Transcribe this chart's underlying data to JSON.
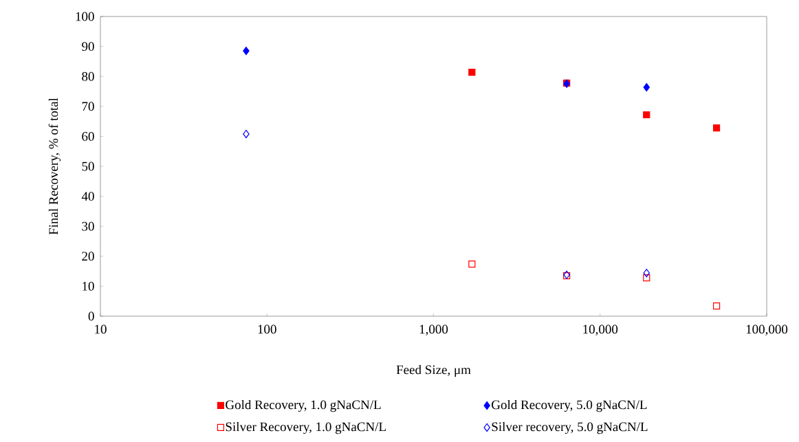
{
  "chart_data": {
    "type": "scatter",
    "xlabel": "Feed Size, μm",
    "ylabel": "Final Recovery, % of total",
    "log": "x",
    "xlim": [
      10,
      100000
    ],
    "xticks": [
      10,
      100,
      {
        "value": 1000,
        "label": "1,000"
      },
      {
        "value": 10000,
        "label": "10,000"
      },
      {
        "value": 100000,
        "label": "100,000"
      }
    ],
    "ylim": [
      0,
      100
    ],
    "yticks": [
      0,
      10,
      20,
      30,
      40,
      50,
      60,
      70,
      80,
      90,
      100
    ],
    "grid": false,
    "legend": "bottom",
    "series": [
      {
        "name": "Gold Recovery, 1.0 gNaCN/L",
        "color": "#ff0000",
        "marker": "square",
        "x": [
          1700,
          6300,
          19000,
          50000
        ],
        "values": [
          81.4,
          77.8,
          67.2,
          62.8
        ]
      },
      {
        "name": "Gold Recovery, 5.0 gNaCN/L",
        "color": "#0000ff",
        "marker": "diamond",
        "x": [
          75,
          6300,
          19000
        ],
        "values": [
          88.5,
          77.6,
          76.4
        ]
      },
      {
        "name": "Silver Recovery, 1.0 gNaCN/L",
        "color": "#ff0000",
        "marker": "square-open",
        "x": [
          1700,
          6300,
          19000,
          50000
        ],
        "values": [
          17.4,
          13.5,
          12.8,
          3.4
        ]
      },
      {
        "name": "Silver recovery, 5.0 gNaCN/L",
        "color": "#0000ff",
        "marker": "diamond-open",
        "x": [
          75,
          6300,
          19000
        ],
        "values": [
          60.8,
          13.8,
          14.4
        ]
      }
    ]
  }
}
